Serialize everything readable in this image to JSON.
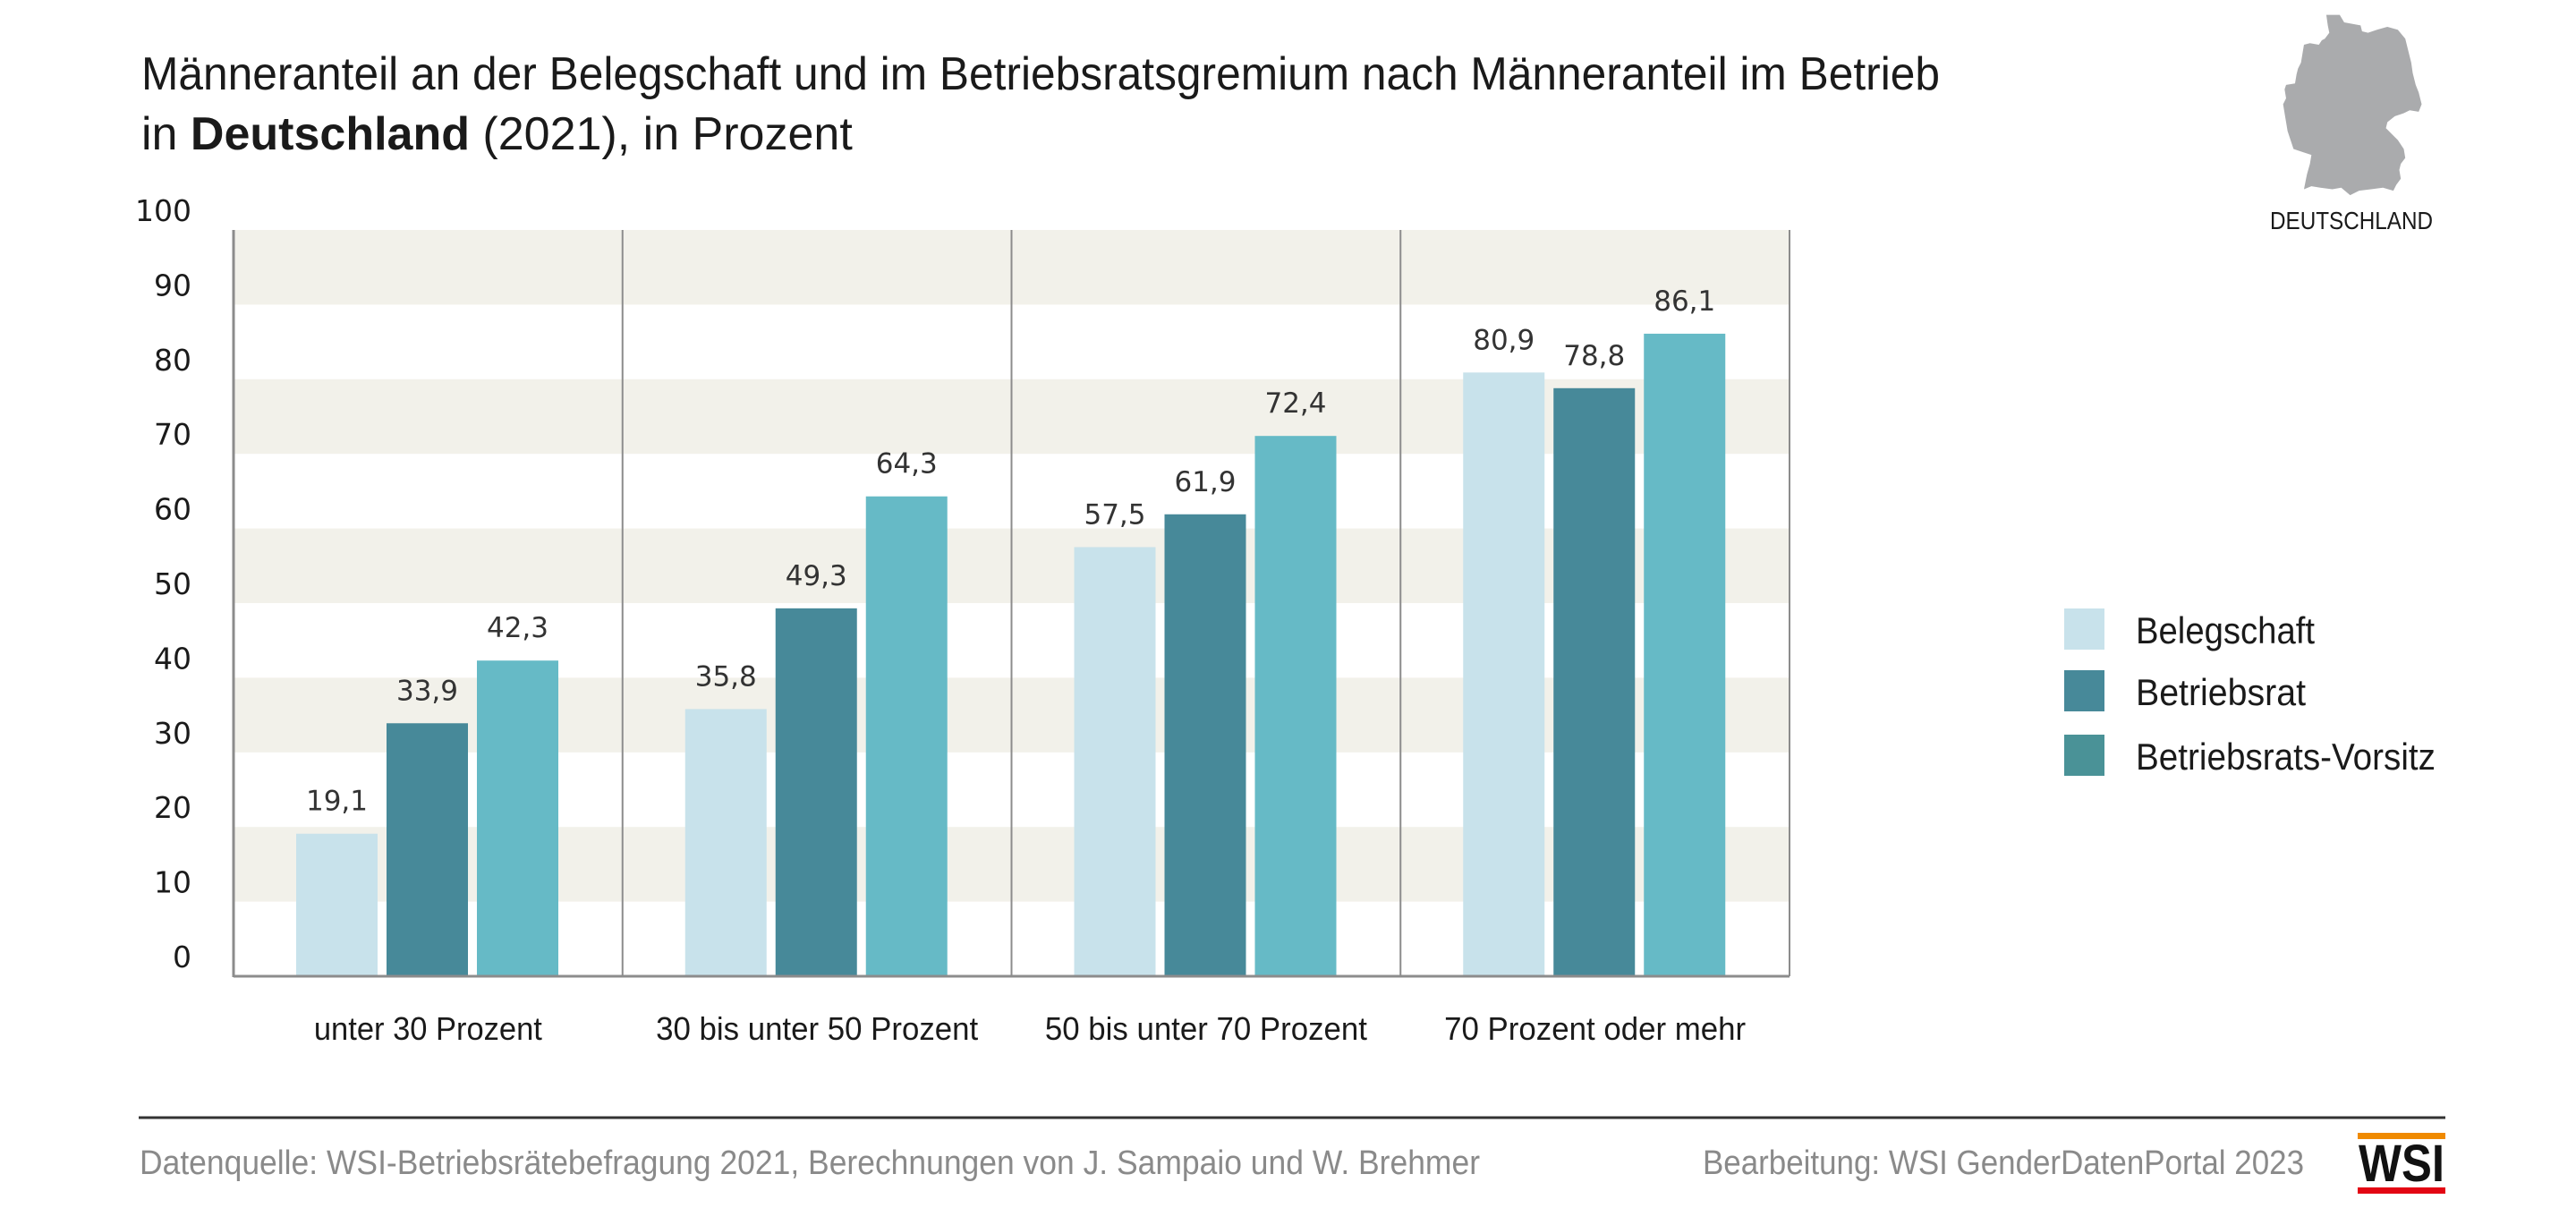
{
  "header": {
    "title_line1": "Männeranteil an der Belegschaft und im Betriebsratsgremium nach Männeranteil im Betrieb",
    "title_line2_prefix": "in ",
    "title_line2_bold": "Deutschland",
    "title_line2_suffix": " (2021), in Prozent"
  },
  "map": {
    "icon": "germany-map-icon",
    "label": "DEUTSCHLAND",
    "color": "#aaabad"
  },
  "footer": {
    "source": "Datenquelle: WSI-Betriebsrätebefragung 2021, Berechnungen von J. Sampaio und W. Brehmer",
    "editing": "Bearbeitung: WSI GenderDatenPortal 2023",
    "logo_text": "WSI",
    "logo_colors": {
      "top_bar": "#f08a00",
      "bottom_bar": "#e30613"
    }
  },
  "chart_data": {
    "type": "bar",
    "title": "Männeranteil an der Belegschaft und im Betriebsratsgremium nach Männeranteil im Betrieb in Deutschland (2021), in Prozent",
    "xlabel": "",
    "ylabel": "",
    "ylim": [
      0,
      100
    ],
    "yticks": [
      0,
      10,
      20,
      30,
      40,
      50,
      60,
      70,
      80,
      90,
      100
    ],
    "grid": "alternating horizontal bands",
    "legend_position": "right",
    "categories": [
      "unter 30 Prozent",
      "30 bis unter 50 Prozent",
      "50 bis unter 70 Prozent",
      "70 Prozent oder mehr"
    ],
    "series": [
      {
        "name": "Belegschaft",
        "color": "#c8e2eb",
        "legend_color": "#c8e2eb",
        "values": [
          19.1,
          35.8,
          57.5,
          80.9
        ],
        "labels": [
          "19,1",
          "35,8",
          "57,5",
          "80,9"
        ]
      },
      {
        "name": "Betriebsrat",
        "color": "#478999",
        "legend_color": "#478999",
        "values": [
          33.9,
          49.3,
          61.9,
          78.8
        ],
        "labels": [
          "33,9",
          "49,3",
          "61,9",
          "78,8"
        ]
      },
      {
        "name": "Betriebsrats-Vorsitz",
        "color": "#66bac6",
        "legend_color": "#4a9297",
        "values": [
          42.3,
          64.3,
          72.4,
          86.1
        ],
        "labels": [
          "42,3",
          "64,3",
          "72,4",
          "86,1"
        ]
      }
    ],
    "band_color": "#f2f1ea"
  }
}
